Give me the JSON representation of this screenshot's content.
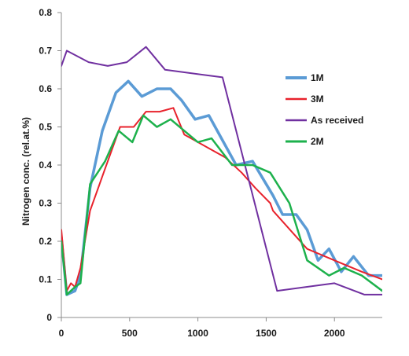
{
  "chart_data": {
    "type": "line",
    "title": "",
    "xlabel": "",
    "ylabel": "Nitrogen conc. (rel.at.%)",
    "xlim": [
      0,
      2350
    ],
    "ylim": [
      0,
      0.8
    ],
    "xticks": [
      "0",
      "500",
      "1000",
      "1500",
      "2000"
    ],
    "xtick_values": [
      0,
      500,
      1000,
      1500,
      2000
    ],
    "yticks": [
      "0",
      "0.1",
      "0.2",
      "0.3",
      "0.4",
      "0.5",
      "0.6",
      "0.7",
      "0.8"
    ],
    "ytick_values": [
      0,
      0.1,
      0.2,
      0.3,
      0.4,
      0.5,
      0.6,
      0.7,
      0.8
    ],
    "grid": false,
    "legend_position": "right",
    "series": [
      {
        "name": "1M",
        "color": "#5b9bd5",
        "width": 3.5,
        "x": [
          0,
          40,
          100,
          140,
          210,
          300,
          400,
          490,
          590,
          700,
          800,
          880,
          980,
          1080,
          1280,
          1400,
          1550,
          1620,
          1720,
          1800,
          1880,
          1960,
          2050,
          2140,
          2250,
          2350
        ],
        "y": [
          0.21,
          0.06,
          0.07,
          0.11,
          0.34,
          0.49,
          0.59,
          0.62,
          0.58,
          0.6,
          0.6,
          0.57,
          0.52,
          0.53,
          0.4,
          0.41,
          0.32,
          0.27,
          0.27,
          0.23,
          0.15,
          0.18,
          0.12,
          0.16,
          0.11,
          0.11
        ]
      },
      {
        "name": "3M",
        "color": "#e8222c",
        "width": 2,
        "x": [
          0,
          40,
          70,
          100,
          140,
          210,
          310,
          430,
          530,
          620,
          720,
          820,
          900,
          1000,
          1100,
          1200,
          1320,
          1420,
          1530,
          1550,
          1800,
          2000,
          2200,
          2350
        ],
        "y": [
          0.23,
          0.07,
          0.09,
          0.08,
          0.13,
          0.28,
          0.38,
          0.5,
          0.5,
          0.54,
          0.54,
          0.55,
          0.48,
          0.46,
          0.44,
          0.42,
          0.38,
          0.34,
          0.3,
          0.28,
          0.18,
          0.15,
          0.12,
          0.1
        ]
      },
      {
        "name": "As received",
        "color": "#7030a0",
        "width": 2,
        "x": [
          0,
          40,
          200,
          340,
          480,
          620,
          760,
          1180,
          1580,
          2000,
          2220,
          2350
        ],
        "y": [
          0.66,
          0.7,
          0.67,
          0.66,
          0.67,
          0.71,
          0.65,
          0.63,
          0.07,
          0.09,
          0.06,
          0.06
        ]
      },
      {
        "name": "2M",
        "color": "#1db14c",
        "width": 2.5,
        "x": [
          0,
          40,
          100,
          140,
          210,
          320,
          420,
          520,
          600,
          700,
          800,
          900,
          1000,
          1100,
          1250,
          1400,
          1530,
          1670,
          1800,
          1960,
          2070,
          2200,
          2350
        ],
        "y": [
          0.2,
          0.06,
          0.08,
          0.09,
          0.35,
          0.41,
          0.49,
          0.46,
          0.53,
          0.5,
          0.52,
          0.49,
          0.46,
          0.47,
          0.4,
          0.4,
          0.38,
          0.3,
          0.15,
          0.11,
          0.13,
          0.11,
          0.07
        ]
      }
    ],
    "legend_order": [
      0,
      1,
      2,
      3
    ]
  }
}
